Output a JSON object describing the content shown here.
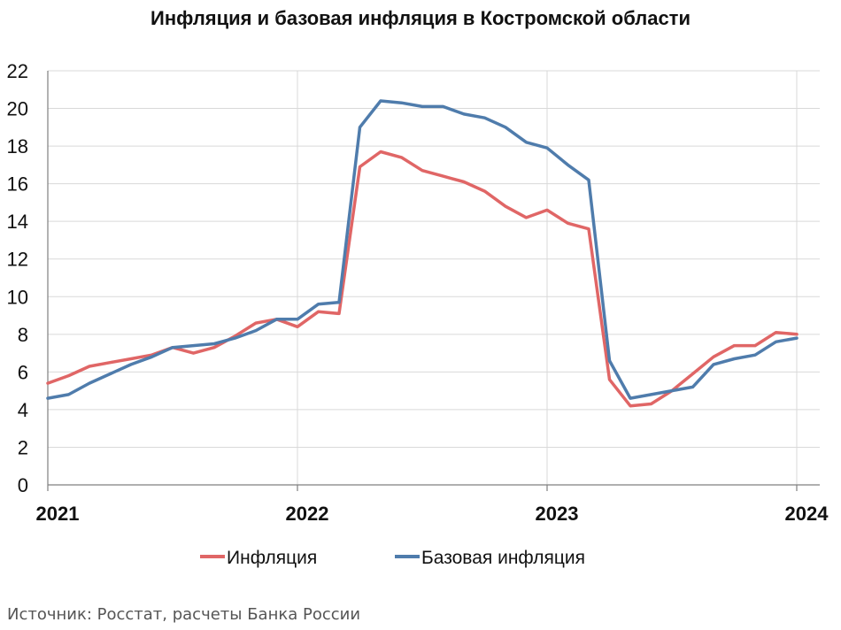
{
  "chart_data": {
    "type": "line",
    "title": "Инфляция и базовая инфляция в Костромской области",
    "xlabel": "",
    "ylabel": "",
    "ylim": [
      0,
      22
    ],
    "y_ticks": [
      0,
      2,
      4,
      6,
      8,
      10,
      12,
      14,
      16,
      18,
      20,
      22
    ],
    "x_ticks": [
      "2021",
      "2022",
      "2023",
      "2024"
    ],
    "grid": true,
    "legend_position": "bottom",
    "x": [
      "2021-01",
      "2021-02",
      "2021-03",
      "2021-04",
      "2021-05",
      "2021-06",
      "2021-07",
      "2021-08",
      "2021-09",
      "2021-10",
      "2021-11",
      "2021-12",
      "2022-01",
      "2022-02",
      "2022-03",
      "2022-04",
      "2022-05",
      "2022-06",
      "2022-07",
      "2022-08",
      "2022-09",
      "2022-10",
      "2022-11",
      "2022-12",
      "2023-01",
      "2023-02",
      "2023-03",
      "2023-04",
      "2023-05",
      "2023-06",
      "2023-07",
      "2023-08",
      "2023-09",
      "2023-10",
      "2023-11",
      "2023-12",
      "2024-01"
    ],
    "series": [
      {
        "name": "Инфляция",
        "color": "#e06666",
        "values": [
          5.4,
          5.8,
          6.3,
          6.5,
          6.7,
          6.9,
          7.3,
          7.0,
          7.3,
          7.9,
          8.6,
          8.8,
          8.4,
          9.2,
          9.1,
          16.9,
          17.7,
          17.4,
          16.7,
          16.4,
          16.1,
          15.6,
          14.8,
          14.2,
          14.6,
          13.9,
          13.6,
          5.6,
          4.2,
          4.3,
          5.0,
          5.9,
          6.8,
          7.4,
          7.4,
          8.1,
          8.0
        ]
      },
      {
        "name": "Базовая инфляция",
        "color": "#4f7cac",
        "values": [
          4.6,
          4.8,
          5.4,
          5.9,
          6.4,
          6.8,
          7.3,
          7.4,
          7.5,
          7.8,
          8.2,
          8.8,
          8.8,
          9.6,
          9.7,
          19.0,
          20.4,
          20.3,
          20.1,
          20.1,
          19.7,
          19.5,
          19.0,
          18.2,
          17.9,
          17.0,
          16.2,
          6.6,
          4.6,
          4.8,
          5.0,
          5.2,
          6.4,
          6.7,
          6.9,
          7.6,
          7.8
        ]
      }
    ]
  },
  "source_note": "Источник: Росстат, расчеты Банка России"
}
